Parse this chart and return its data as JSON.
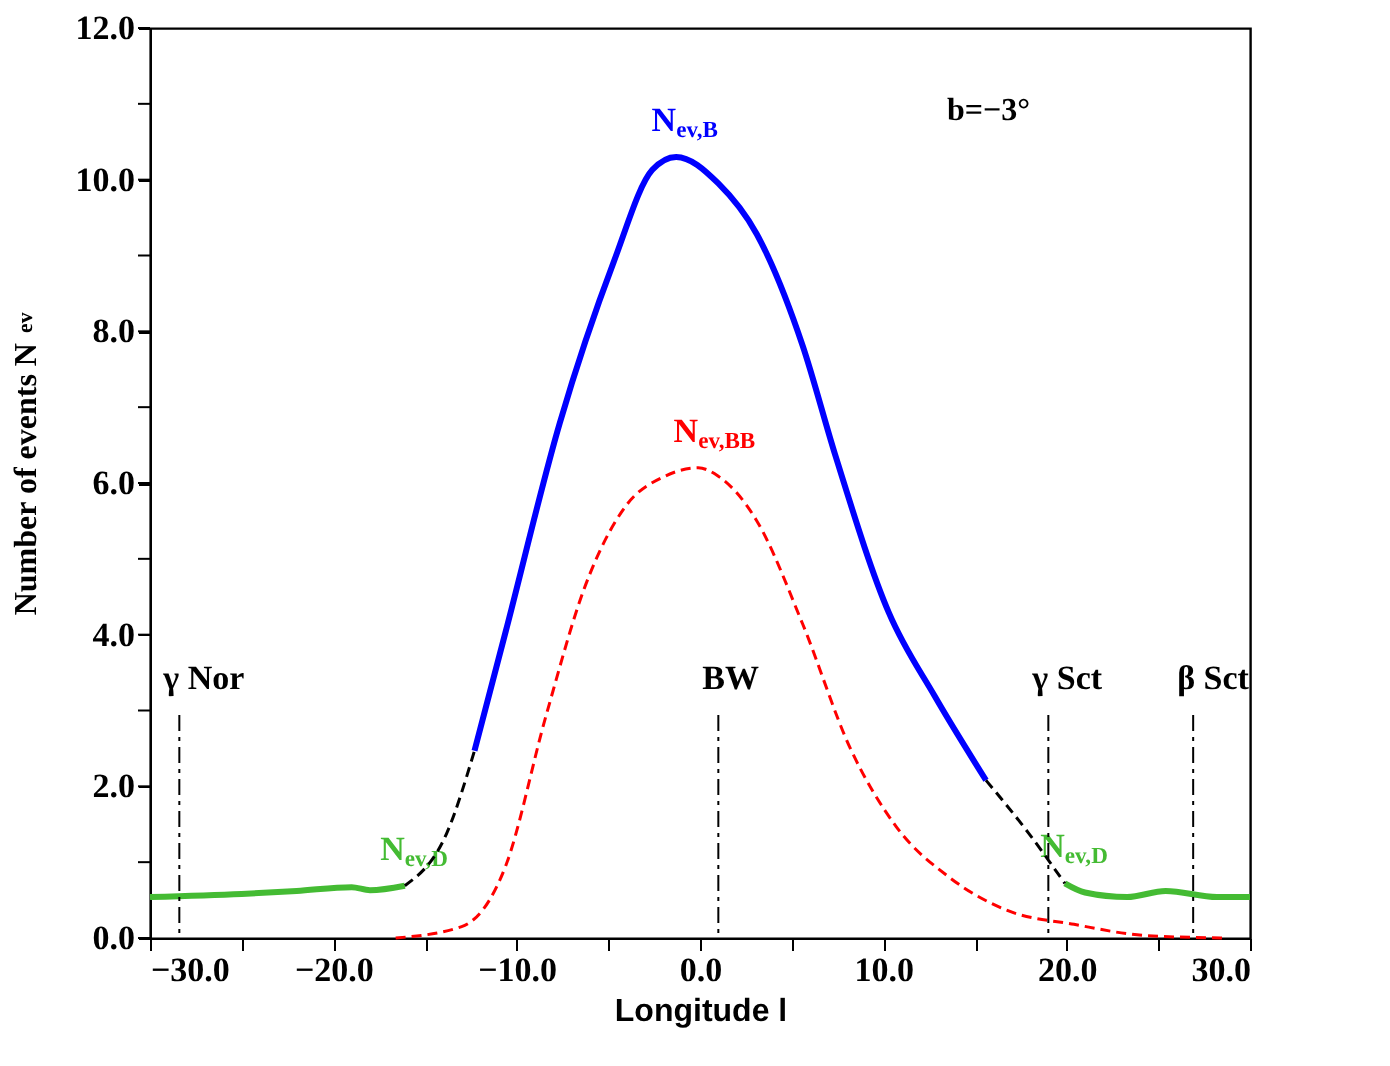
{
  "chart_data": {
    "type": "line",
    "xlabel": "Longitude l",
    "ylabel": "Number of events N$_{ev}$",
    "xlim": [
      -30,
      30
    ],
    "ylim": [
      0,
      12
    ],
    "xticks": [
      {
        "value": -30,
        "label": "−30.0"
      },
      {
        "value": -25,
        "label": null
      },
      {
        "value": -20,
        "label": "−20.0"
      },
      {
        "value": -15,
        "label": null
      },
      {
        "value": -10,
        "label": "−10.0"
      },
      {
        "value": -5,
        "label": null
      },
      {
        "value": 0,
        "label": "0.0"
      },
      {
        "value": 5,
        "label": null
      },
      {
        "value": 10,
        "label": "10.0"
      },
      {
        "value": 15,
        "label": null
      },
      {
        "value": 20,
        "label": "20.0"
      },
      {
        "value": 25,
        "label": null
      },
      {
        "value": 30,
        "label": "30.0"
      }
    ],
    "yticks": [
      {
        "value": 0,
        "label": "0.0"
      },
      {
        "value": 1,
        "label": null
      },
      {
        "value": 2,
        "label": "2.0"
      },
      {
        "value": 3,
        "label": null
      },
      {
        "value": 4,
        "label": "4.0"
      },
      {
        "value": 5,
        "label": null
      },
      {
        "value": 6,
        "label": "6.0"
      },
      {
        "value": 7,
        "label": null
      },
      {
        "value": 8,
        "label": "8.0"
      },
      {
        "value": 9,
        "label": null
      },
      {
        "value": 10,
        "label": "10.0"
      },
      {
        "value": 11,
        "label": null
      },
      {
        "value": 12,
        "label": "12.0"
      }
    ],
    "grid": false,
    "marker": "none",
    "annotations": [
      "b=−3°"
    ],
    "ref_lines": [
      {
        "axis": "x",
        "value": -28.4,
        "label": "γ Nor",
        "line_style": "dashdot",
        "color": "#000000"
      },
      {
        "axis": "x",
        "value": 1.0,
        "label": "BW",
        "line_style": "dashdot",
        "color": "#000000"
      },
      {
        "axis": "x",
        "value": 19.0,
        "label": "γ Sct",
        "line_style": "dashdot",
        "color": "#000000"
      },
      {
        "axis": "x",
        "value": 26.9,
        "label": "β Sct",
        "line_style": "dashdot",
        "color": "#000000"
      }
    ],
    "series": [
      {
        "name": "N$_{ev,B}$",
        "color": "#0000ff",
        "line_style": "solid",
        "x": [
          -12.3,
          -10.6,
          -7.65,
          -4.7,
          -2.6,
          -1.3,
          1.0,
          3.1,
          5.6,
          7.4,
          10.3,
          12.8,
          15.6
        ],
        "values": [
          2.47,
          4.04,
          6.79,
          8.92,
          10.13,
          10.3,
          9.95,
          9.28,
          7.81,
          6.35,
          4.29,
          3.19,
          2.08
        ]
      },
      {
        "name": "N$_{ev,BB}$",
        "color": "#ff0000",
        "line_style": "dashed",
        "x": [
          -16.6,
          -13.0,
          -10.6,
          -8.4,
          -6.25,
          -4.1,
          -1.9,
          -0.1,
          1.0,
          3.1,
          5.6,
          8.2,
          10.7,
          13.6,
          16.8,
          20.4,
          24.4,
          28.7
        ],
        "values": [
          0.0,
          0.15,
          0.95,
          2.93,
          4.65,
          5.68,
          6.09,
          6.2,
          6.09,
          5.5,
          4.14,
          2.5,
          1.47,
          0.8,
          0.36,
          0.18,
          0.03,
          0.0
        ]
      },
      {
        "name": "N$_{ev,D}$",
        "color": "#44bb33",
        "line_style": "solid",
        "x": [
          -30,
          -25,
          -22,
          -19,
          -18,
          -16.1
        ],
        "values": [
          0.54,
          0.58,
          0.62,
          0.67,
          0.63,
          0.69
        ]
      },
      {
        "name": "N$_{ev,D}$",
        "color": "#44bb33",
        "line_style": "solid",
        "x": [
          19.9,
          21.0,
          23.3,
          25.4,
          28.2,
          30
        ],
        "values": [
          0.72,
          0.6,
          0.54,
          0.62,
          0.54,
          0.54
        ]
      },
      {
        "color": "#000000",
        "line_style": "dashed",
        "x": [
          -16.1,
          -13.8,
          -12.3
        ],
        "values": [
          0.69,
          1.39,
          2.47
        ]
      },
      {
        "color": "#000000",
        "line_style": "dashed",
        "x": [
          15.6,
          17.9,
          19.9
        ],
        "values": [
          2.08,
          1.39,
          0.72
        ]
      }
    ]
  }
}
